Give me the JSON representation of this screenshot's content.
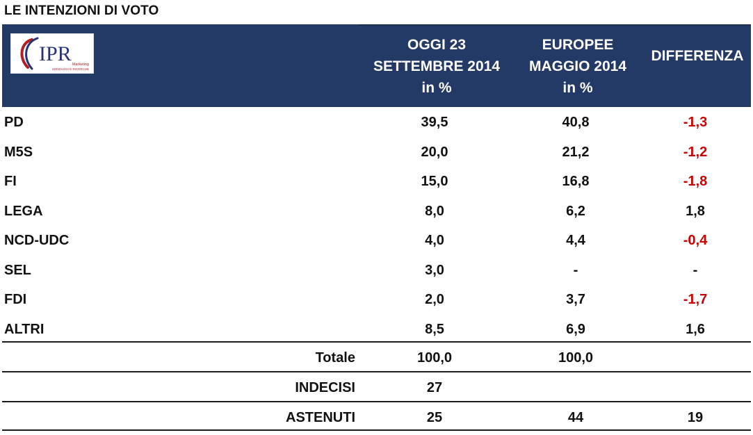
{
  "title": "LE INTENZIONI DI VOTO",
  "logo": {
    "text": "IPR",
    "tagline_line1": "Marketing",
    "tagline_line2": "SONDAGGI E RICERCHE"
  },
  "colors": {
    "header_bg": "#233966",
    "negative": "#cc0000",
    "logo_red": "#b01e26",
    "logo_blue": "#25327a"
  },
  "headers": {
    "col1": [
      "OGGI 23",
      "SETTEMBRE 2014",
      "in %"
    ],
    "col2": [
      "EUROPEE",
      "MAGGIO 2014",
      "in %"
    ],
    "col3": "DIFFERENZA"
  },
  "rows": [
    {
      "party": "PD",
      "oggi": "39,5",
      "europee": "40,8",
      "diff": "-1,3"
    },
    {
      "party": "M5S",
      "oggi": "20,0",
      "europee": "21,2",
      "diff": "-1,2"
    },
    {
      "party": "FI",
      "oggi": "15,0",
      "europee": "16,8",
      "diff": "-1,8"
    },
    {
      "party": "LEGA",
      "oggi": "8,0",
      "europee": "6,2",
      "diff": "1,8"
    },
    {
      "party": "NCD-UDC",
      "oggi": "4,0",
      "europee": "4,4",
      "diff": "-0,4"
    },
    {
      "party": "SEL",
      "oggi": "3,0",
      "europee": "-",
      "diff": "-"
    },
    {
      "party": "FDI",
      "oggi": "2,0",
      "europee": "3,7",
      "diff": "-1,7"
    },
    {
      "party": "ALTRI",
      "oggi": "8,5",
      "europee": "6,9",
      "diff": "1,6"
    }
  ],
  "summary": {
    "totale": {
      "label": "Totale",
      "oggi": "100,0",
      "europee": "100,0",
      "diff": ""
    },
    "indecisi": {
      "label": "INDECISI",
      "oggi": "27",
      "europee": "",
      "diff": ""
    },
    "astenuti": {
      "label": "ASTENUTI",
      "oggi": "25",
      "europee": "44",
      "diff": "19"
    }
  },
  "chart_data": {
    "type": "table",
    "title": "LE INTENZIONI DI VOTO",
    "columns": [
      "OGGI 23 SETTEMBRE 2014 in %",
      "EUROPEE MAGGIO 2014 in %",
      "DIFFERENZA"
    ],
    "categories": [
      "PD",
      "M5S",
      "FI",
      "LEGA",
      "NCD-UDC",
      "SEL",
      "FDI",
      "ALTRI"
    ],
    "series": [
      {
        "name": "OGGI 23 SETTEMBRE 2014 in %",
        "values": [
          39.5,
          20.0,
          15.0,
          8.0,
          4.0,
          3.0,
          2.0,
          8.5
        ]
      },
      {
        "name": "EUROPEE MAGGIO 2014 in %",
        "values": [
          40.8,
          21.2,
          16.8,
          6.2,
          4.4,
          null,
          3.7,
          6.9
        ]
      },
      {
        "name": "DIFFERENZA",
        "values": [
          -1.3,
          -1.2,
          -1.8,
          1.8,
          -0.4,
          null,
          -1.7,
          1.6
        ]
      }
    ],
    "totals": {
      "Totale": [
        100.0,
        100.0,
        null
      ],
      "INDECISI": [
        27,
        null,
        null
      ],
      "ASTENUTI": [
        25,
        44,
        19
      ]
    }
  }
}
